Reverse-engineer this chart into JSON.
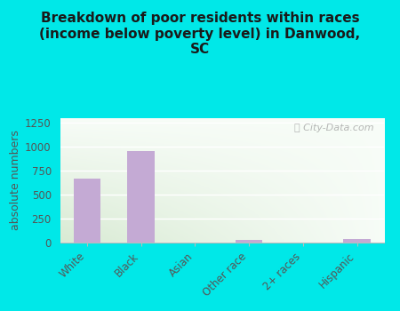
{
  "categories": [
    "White",
    "Black",
    "Asian",
    "Other race",
    "2+ races",
    "Hispanic"
  ],
  "values": [
    670,
    960,
    0,
    30,
    0,
    35
  ],
  "bar_color": "#c4aad4",
  "background_color": "#00e8e8",
  "title": "Breakdown of poor residents within races\n(income below poverty level) in Danwood,\nSC",
  "ylabel": "absolute numbers",
  "ylim": [
    0,
    1300
  ],
  "yticks": [
    0,
    250,
    500,
    750,
    1000,
    1250
  ],
  "title_fontsize": 11,
  "axis_label_fontsize": 9,
  "tick_fontsize": 8.5,
  "watermark": "City-Data.com",
  "plot_bg_topleft": [
    0.88,
    0.95,
    0.88
  ],
  "plot_bg_topright": [
    0.97,
    0.99,
    0.97
  ],
  "plot_bg_bottomleft": [
    0.82,
    0.92,
    0.82
  ],
  "plot_bg_bottomright": [
    0.95,
    0.98,
    0.95
  ]
}
